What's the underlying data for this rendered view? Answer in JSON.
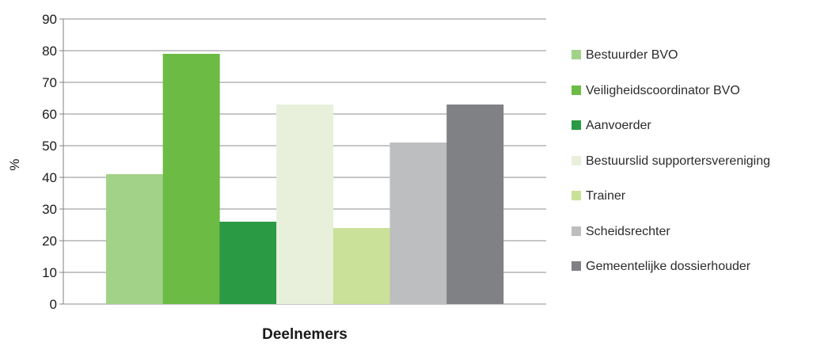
{
  "chart_data": {
    "type": "bar",
    "title": "",
    "xlabel": "Deelnemers",
    "ylabel": "%",
    "ylim": [
      0,
      90
    ],
    "yticks": [
      0,
      10,
      20,
      30,
      40,
      50,
      60,
      70,
      80,
      90
    ],
    "grid": true,
    "legend_position": "right",
    "categories": [
      "Deelnemers"
    ],
    "series": [
      {
        "name": "Bestuurder BVO",
        "values": [
          41
        ],
        "color": "#a1d288"
      },
      {
        "name": "Veiligheidscoordinator BVO",
        "values": [
          79
        ],
        "color": "#6cbb45"
      },
      {
        "name": "Aanvoerder",
        "values": [
          26
        ],
        "color": "#2a9a44"
      },
      {
        "name": "Bestuurslid supportersvereniging",
        "values": [
          63
        ],
        "color": "#e8f0dc"
      },
      {
        "name": "Trainer",
        "values": [
          24
        ],
        "color": "#c9e199"
      },
      {
        "name": "Scheidsrechter",
        "values": [
          51
        ],
        "color": "#bdbec0"
      },
      {
        "name": "Gemeentelijke dossierhouder",
        "values": [
          63
        ],
        "color": "#808184"
      }
    ]
  }
}
